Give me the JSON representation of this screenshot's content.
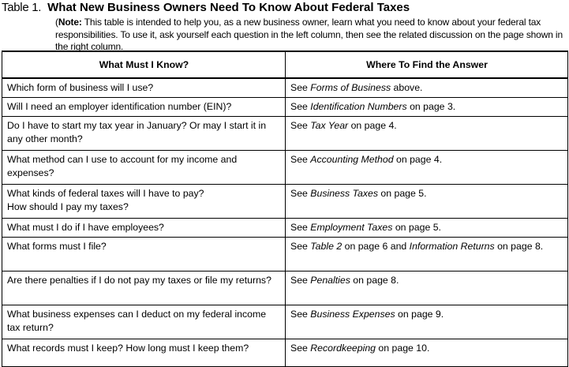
{
  "title": {
    "label": "Table 1.",
    "text": "What New Business Owners Need To Know About Federal Taxes"
  },
  "note": {
    "open": "(",
    "bold": "Note:",
    "text": " This table is intended to help you, as a new business owner, learn what you need to know about your federal tax responsibilities. To use it, ask yourself each question in the left column, then see the related discussion on the page shown in the right column."
  },
  "columns": [
    "What Must I Know?",
    "Where To Find the Answer"
  ],
  "rows": [
    {
      "q": "Which form of business will I use?",
      "a": [
        {
          "t": "See "
        },
        {
          "t": "Forms of Business",
          "i": true
        },
        {
          "t": " above."
        }
      ]
    },
    {
      "q": "Will I need an employer identification number (EIN)?",
      "a": [
        {
          "t": "See "
        },
        {
          "t": "Identification Numbers",
          "i": true
        },
        {
          "t": " on page 3."
        }
      ]
    },
    {
      "q": "Do I have to start my tax year in January? Or may I start it in any other month?",
      "a": [
        {
          "t": "See "
        },
        {
          "t": "Tax Year",
          "i": true
        },
        {
          "t": " on page 4."
        }
      ]
    },
    {
      "q": "What method can I use to account for my income and expenses?",
      "a": [
        {
          "t": "See "
        },
        {
          "t": "Accounting Method",
          "i": true
        },
        {
          "t": " on page 4."
        }
      ]
    },
    {
      "q": "What kinds of federal taxes will I have to pay?\nHow should I pay my taxes?",
      "a": [
        {
          "t": "See "
        },
        {
          "t": "Business Taxes",
          "i": true
        },
        {
          "t": " on page 5."
        }
      ]
    },
    {
      "q": "What must I do if I have employees?",
      "a": [
        {
          "t": "See "
        },
        {
          "t": "Employment Taxes",
          "i": true
        },
        {
          "t": " on page 5."
        }
      ]
    },
    {
      "q": "What forms must I file?",
      "a": [
        {
          "t": "See "
        },
        {
          "t": "Table 2",
          "i": true
        },
        {
          "t": " on page 6 and "
        },
        {
          "t": "Information Returns",
          "i": true
        },
        {
          "t": " on page 8."
        }
      ]
    },
    {
      "q": "Are there penalties if I do not pay my taxes or file my returns?",
      "a": [
        {
          "t": "See "
        },
        {
          "t": "Penalties",
          "i": true
        },
        {
          "t": " on page 8."
        }
      ]
    },
    {
      "q": "What business expenses can I deduct on my federal income tax return?",
      "a": [
        {
          "t": "See "
        },
        {
          "t": "Business Expenses",
          "i": true
        },
        {
          "t": " on page 9."
        }
      ]
    },
    {
      "q": "What records must I keep? How long must I keep them?",
      "a": [
        {
          "t": "See "
        },
        {
          "t": "Recordkeeping",
          "i": true
        },
        {
          "t": " on page 10."
        }
      ]
    }
  ]
}
